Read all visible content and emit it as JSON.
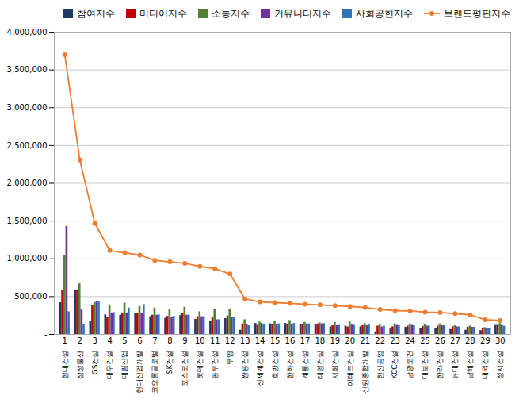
{
  "chart_data": {
    "type": "bar",
    "categories": [
      "1",
      "2",
      "3",
      "4",
      "5",
      "6",
      "7",
      "8",
      "9",
      "10",
      "11",
      "12",
      "13",
      "14",
      "15",
      "16",
      "17",
      "18",
      "19",
      "20",
      "21",
      "22",
      "23",
      "24",
      "25",
      "26",
      "27",
      "28",
      "29",
      "30"
    ],
    "annotations": [
      "현대건설",
      "삼성물산",
      "GS건설",
      "대우건설",
      "대림산업",
      "현대산업개발",
      "코오롱글로벌",
      "SK건설",
      "포스코건설",
      "롯데건설",
      "동부건설",
      "부영",
      "쌍용건설",
      "신세계건설",
      "호반건설",
      "한화건설",
      "계룡건설",
      "태영건설",
      "서희건설",
      "이테크건설",
      "신원종합개발",
      "한신공영",
      "KCC건설",
      "남광토건",
      "대보건설",
      "한라건설",
      "뉴대건설",
      "남해건설",
      "내외건설",
      "성지건설"
    ],
    "series": [
      {
        "name": "참여지수",
        "type": "bar",
        "color": "#203864",
        "values": [
          420000,
          580000,
          170000,
          260000,
          255000,
          280000,
          235000,
          215000,
          250000,
          200000,
          175000,
          210000,
          55000,
          145000,
          140000,
          145000,
          135000,
          125000,
          100000,
          110000,
          100000,
          35000,
          85000,
          95000,
          75000,
          80000,
          65000,
          55000,
          50000,
          120000
        ]
      },
      {
        "name": "미디어지수",
        "type": "bar",
        "color": "#c00000",
        "values": [
          580000,
          590000,
          380000,
          230000,
          280000,
          280000,
          255000,
          240000,
          275000,
          235000,
          220000,
          245000,
          140000,
          120000,
          130000,
          130000,
          135000,
          140000,
          115000,
          100000,
          115000,
          110000,
          100000,
          110000,
          105000,
          110000,
          100000,
          95000,
          80000,
          120000
        ]
      },
      {
        "name": "소통지수",
        "type": "bar",
        "color": "#538135",
        "values": [
          1050000,
          670000,
          420000,
          390000,
          415000,
          370000,
          350000,
          330000,
          360000,
          300000,
          330000,
          330000,
          195000,
          165000,
          175000,
          185000,
          160000,
          155000,
          160000,
          165000,
          145000,
          125000,
          140000,
          140000,
          135000,
          140000,
          115000,
          110000,
          90000,
          145000
        ]
      },
      {
        "name": "커뮤니티지수",
        "type": "bar",
        "color": "#7030a0",
        "values": [
          1430000,
          330000,
          430000,
          285000,
          285000,
          280000,
          255000,
          230000,
          255000,
          235000,
          195000,
          230000,
          125000,
          145000,
          130000,
          130000,
          140000,
          140000,
          115000,
          125000,
          115000,
          100000,
          120000,
          120000,
          110000,
          115000,
          100000,
          95000,
          80000,
          120000
        ]
      },
      {
        "name": "사회공헌지수",
        "type": "bar",
        "color": "#2e75b6",
        "values": [
          300000,
          130000,
          430000,
          290000,
          350000,
          395000,
          260000,
          240000,
          255000,
          235000,
          195000,
          220000,
          115000,
          135000,
          140000,
          145000,
          140000,
          145000,
          120000,
          120000,
          125000,
          110000,
          115000,
          115000,
          110000,
          115000,
          100000,
          95000,
          80000,
          110000
        ]
      },
      {
        "name": "브랜드평판지수",
        "type": "line",
        "marker": "circle",
        "color": "#ed7d31",
        "values": [
          3700000,
          2310000,
          1470000,
          1110000,
          1080000,
          1050000,
          980000,
          960000,
          940000,
          900000,
          870000,
          800000,
          470000,
          430000,
          420000,
          410000,
          400000,
          390000,
          380000,
          370000,
          355000,
          330000,
          315000,
          310000,
          295000,
          290000,
          275000,
          260000,
          195000,
          185000
        ]
      }
    ],
    "ylim": [
      0,
      4000000
    ],
    "yticks": [
      {
        "value": 0,
        "label": "-"
      },
      {
        "value": 500000,
        "label": "500,000"
      },
      {
        "value": 1000000,
        "label": "1,000,000"
      },
      {
        "value": 1500000,
        "label": "1,500,000"
      },
      {
        "value": 2000000,
        "label": "2,000,000"
      },
      {
        "value": 2500000,
        "label": "2,500,000"
      },
      {
        "value": 3000000,
        "label": "3,000,000"
      },
      {
        "value": 3500000,
        "label": "3,500,000"
      },
      {
        "value": 4000000,
        "label": "4,000,000"
      }
    ],
    "grid": true,
    "legend": "upper right"
  }
}
